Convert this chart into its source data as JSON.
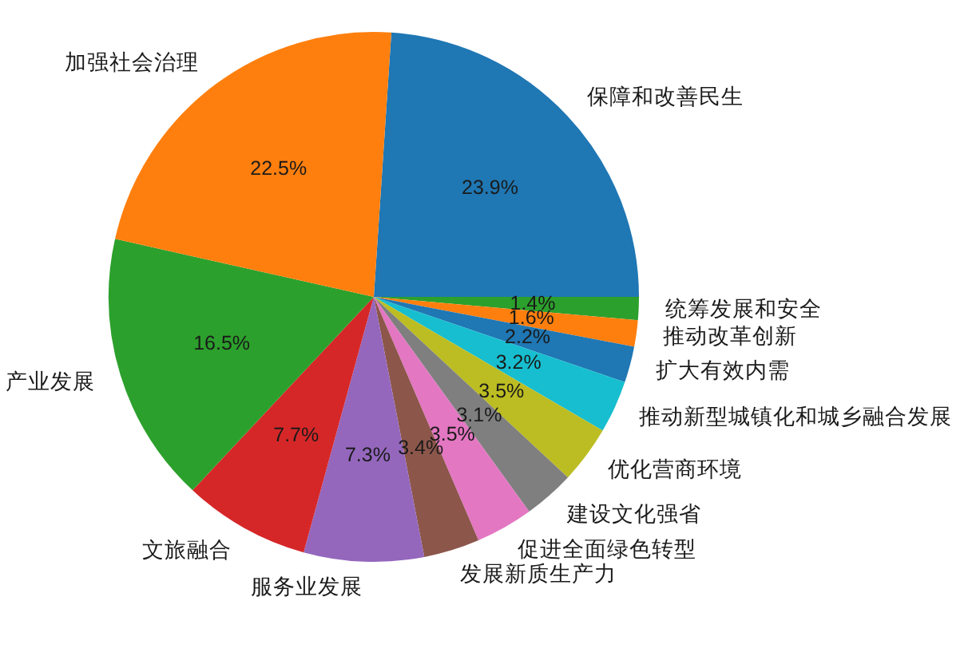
{
  "chart_data": {
    "type": "pie",
    "categories": [
      "保障和改善民生",
      "统筹发展和安全",
      "推动改革创新",
      "扩大有效内需",
      "推动新型城镇化和城乡融合发展",
      "优化营商环境",
      "建设文化强省",
      "促进全面绿色转型",
      "发展新质生产力",
      "服务业发展",
      "文旅融合",
      "产业发展",
      "加强社会治理"
    ],
    "values": [
      23.9,
      1.4,
      1.6,
      2.2,
      3.2,
      3.5,
      3.1,
      3.5,
      3.4,
      7.3,
      7.7,
      16.5,
      22.5
    ],
    "colors": [
      "#1f77b4",
      "#2ca02c",
      "#ff7f0e",
      "#1f77b4",
      "#17becf",
      "#bcbd22",
      "#7f7f7f",
      "#e377c2",
      "#8c564b",
      "#9467bd",
      "#d62728",
      "#2ca02c",
      "#ff7f0e"
    ],
    "value_labels": [
      "23.9%",
      "1.4%",
      "1.6%",
      "2.2%",
      "3.2%",
      "3.5%",
      "3.1%",
      "3.5%",
      "3.4%",
      "7.3%",
      "7.7%",
      "16.5%",
      "22.5%"
    ],
    "legend": false
  }
}
